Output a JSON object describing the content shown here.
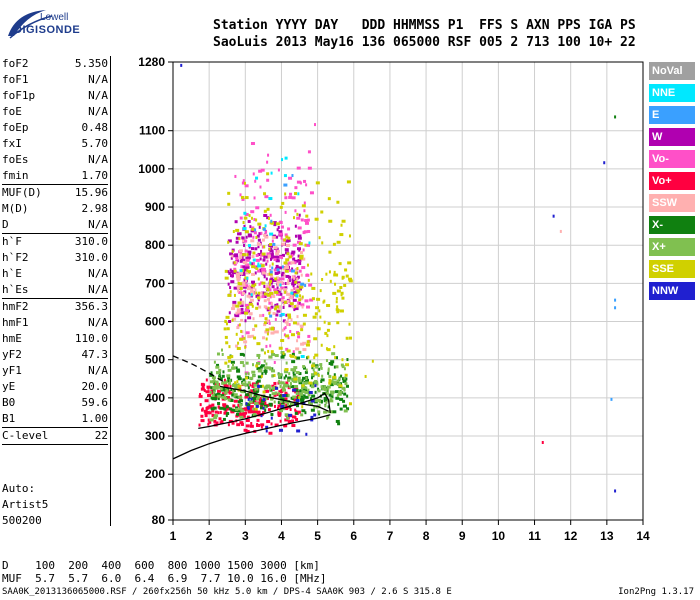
{
  "logo": {
    "line1": "Lowell",
    "line2": "DIGISONDE"
  },
  "header": {
    "row1": "Station YYYY DAY   DDD HHMMSS P1  FFS S AXN PPS IGA PS",
    "row2": "SaoLuis 2013 May16 136 065000 RSF 005 2 713 100 10+ 22"
  },
  "params": [
    {
      "label": "foF2",
      "value": "5.350"
    },
    {
      "label": "foF1",
      "value": "N/A"
    },
    {
      "label": "foF1p",
      "value": "N/A"
    },
    {
      "label": "foE",
      "value": "N/A"
    },
    {
      "label": "foEp",
      "value": "0.48"
    },
    {
      "label": "fxI",
      "value": "5.70"
    },
    {
      "label": "foEs",
      "value": "N/A"
    },
    {
      "label": "fmin",
      "value": "1.70"
    },
    {
      "sep": true
    },
    {
      "label": "MUF(D)",
      "value": "15.96"
    },
    {
      "label": "M(D)",
      "value": "2.98"
    },
    {
      "label": "D",
      "value": "N/A"
    },
    {
      "sep": true
    },
    {
      "label": "h`F",
      "value": "310.0"
    },
    {
      "label": "h`F2",
      "value": "310.0"
    },
    {
      "label": "h`E",
      "value": "N/A"
    },
    {
      "label": "h`Es",
      "value": "N/A"
    },
    {
      "sep": true
    },
    {
      "label": "hmF2",
      "value": "356.3"
    },
    {
      "label": "hmF1",
      "value": "N/A"
    },
    {
      "label": "hmE",
      "value": "110.0"
    },
    {
      "label": "yF2",
      "value": "47.3"
    },
    {
      "label": "yF1",
      "value": "N/A"
    },
    {
      "label": "yE",
      "value": "20.0"
    },
    {
      "label": "B0",
      "value": "59.6"
    },
    {
      "label": "B1",
      "value": "1.00"
    },
    {
      "sep": true
    },
    {
      "label": "C-level",
      "value": "22"
    },
    {
      "sep": true
    }
  ],
  "auto": {
    "line1": "Auto:",
    "line2": "Artist5",
    "line3": "500200"
  },
  "legend": [
    {
      "label": "NoVal",
      "color": "#a0a0a0"
    },
    {
      "label": "NNE",
      "color": "#00e8ff"
    },
    {
      "label": "E",
      "color": "#3aa0ff"
    },
    {
      "label": "W",
      "color": "#b000b0"
    },
    {
      "label": "Vo-",
      "color": "#ff50c8"
    },
    {
      "label": "Vo+",
      "color": "#ff0040"
    },
    {
      "label": "SSW",
      "color": "#ffb0b0"
    },
    {
      "label": "X-",
      "color": "#108010"
    },
    {
      "label": "X+",
      "color": "#80c050"
    },
    {
      "label": "SSE",
      "color": "#d0d000"
    },
    {
      "label": "NNW",
      "color": "#2020d0"
    }
  ],
  "bottom": {
    "d_row": "D    100  200  400  600  800 1000 1500 3000 [km]",
    "muf_row": "MUF  5.7  5.7  6.0  6.4  6.9  7.7 10.0 16.0 [MHz]"
  },
  "footer": {
    "left": "SAA0K_2013136065000.RSF / 260fx256h 50 kHz 5.0 km / DPS-4 SAA0K 903 / 2.6 S 315.8 E",
    "right": "Ion2Png 1.3.17"
  },
  "chart_data": {
    "type": "scatter",
    "title": "",
    "xlabel": "",
    "ylabel": "",
    "xlim": [
      1,
      14
    ],
    "ylim": [
      80,
      1280
    ],
    "xticks": [
      "1",
      "2",
      "3",
      "4",
      "5",
      "6",
      "7",
      "8",
      "9",
      "10",
      "11",
      "12",
      "13",
      "14"
    ],
    "yticks": [
      "80",
      "200",
      "300",
      "400",
      "500",
      "600",
      "700",
      "800",
      "900",
      "1000",
      "1100",
      "1280"
    ],
    "grid": true,
    "regions": [
      {
        "name": "W",
        "color": "#b000b0",
        "x": [
          2.5,
          4.5
        ],
        "y": [
          580,
          900
        ],
        "n": 260
      },
      {
        "name": "Vo-",
        "color": "#ff50c8",
        "x": [
          2.6,
          4.8
        ],
        "y": [
          450,
          1100
        ],
        "n": 180
      },
      {
        "name": "SSW",
        "color": "#ffb0b0",
        "x": [
          2.6,
          4.6
        ],
        "y": [
          500,
          850
        ],
        "n": 160
      },
      {
        "name": "Vo+",
        "color": "#ff0040",
        "x": [
          1.7,
          4.5
        ],
        "y": [
          300,
          460
        ],
        "n": 260
      },
      {
        "name": "X-",
        "color": "#108010",
        "x": [
          2.0,
          5.8
        ],
        "y": [
          330,
          530
        ],
        "n": 260
      },
      {
        "name": "X+",
        "color": "#80c050",
        "x": [
          2.0,
          5.8
        ],
        "y": [
          330,
          540
        ],
        "n": 260
      },
      {
        "name": "SSE",
        "color": "#d0d000",
        "x": [
          2.4,
          5.9
        ],
        "y": [
          350,
          1000
        ],
        "n": 280
      },
      {
        "name": "NNW",
        "color": "#2020d0",
        "x": [
          3.0,
          5.0
        ],
        "y": [
          300,
          450
        ],
        "n": 30
      },
      {
        "name": "NNE",
        "color": "#00e8ff",
        "x": [
          2.8,
          4.8
        ],
        "y": [
          500,
          1150
        ],
        "n": 25
      },
      {
        "name": "E",
        "color": "#3aa0ff",
        "x": [
          3.0,
          4.8
        ],
        "y": [
          600,
          1100
        ],
        "n": 15
      }
    ],
    "isolated_points": [
      {
        "x": 1.2,
        "y": 1275,
        "color": "#2020d0"
      },
      {
        "x": 4.9,
        "y": 1120,
        "color": "#ff50c8"
      },
      {
        "x": 5.1,
        "y": 810,
        "color": "#d0d000"
      },
      {
        "x": 6.5,
        "y": 500,
        "color": "#d0d000"
      },
      {
        "x": 6.3,
        "y": 460,
        "color": "#d0d000"
      },
      {
        "x": 11.2,
        "y": 287,
        "color": "#ff0040"
      },
      {
        "x": 11.5,
        "y": 880,
        "color": "#2020d0"
      },
      {
        "x": 11.7,
        "y": 840,
        "color": "#ffb0b0"
      },
      {
        "x": 12.9,
        "y": 1020,
        "color": "#2020d0"
      },
      {
        "x": 13.2,
        "y": 1140,
        "color": "#108010"
      },
      {
        "x": 13.2,
        "y": 660,
        "color": "#3aa0ff"
      },
      {
        "x": 13.2,
        "y": 640,
        "color": "#3aa0ff"
      },
      {
        "x": 13.2,
        "y": 160,
        "color": "#2020d0"
      },
      {
        "x": 13.1,
        "y": 400,
        "color": "#3aa0ff"
      }
    ],
    "curves": [
      {
        "name": "profile",
        "style": "solid",
        "points": [
          [
            1,
            240
          ],
          [
            1.5,
            262
          ],
          [
            2,
            280
          ],
          [
            2.5,
            295
          ],
          [
            3,
            307
          ],
          [
            3.5,
            318
          ],
          [
            4,
            328
          ],
          [
            4.5,
            338
          ],
          [
            5,
            347
          ],
          [
            5.35,
            356
          ]
        ]
      },
      {
        "name": "trace",
        "style": "solid",
        "points": [
          [
            1.7,
            320
          ],
          [
            2,
            325
          ],
          [
            2.5,
            335
          ],
          [
            3,
            345
          ],
          [
            3.5,
            358
          ],
          [
            4,
            372
          ],
          [
            4.5,
            385
          ],
          [
            5,
            400
          ],
          [
            5.2,
            412
          ],
          [
            5.3,
            395
          ],
          [
            5.35,
            360
          ]
        ]
      },
      {
        "name": "trace-upper",
        "style": "solid",
        "points": [
          [
            2.3,
            430
          ],
          [
            3,
            418
          ],
          [
            3.5,
            405
          ],
          [
            4,
            395
          ],
          [
            4.5,
            385
          ],
          [
            5,
            378
          ],
          [
            5.3,
            365
          ]
        ]
      },
      {
        "name": "extrapolation",
        "style": "dashed",
        "points": [
          [
            1,
            510
          ],
          [
            1.5,
            490
          ],
          [
            2,
            465
          ],
          [
            2.4,
            442
          ]
        ]
      }
    ]
  }
}
